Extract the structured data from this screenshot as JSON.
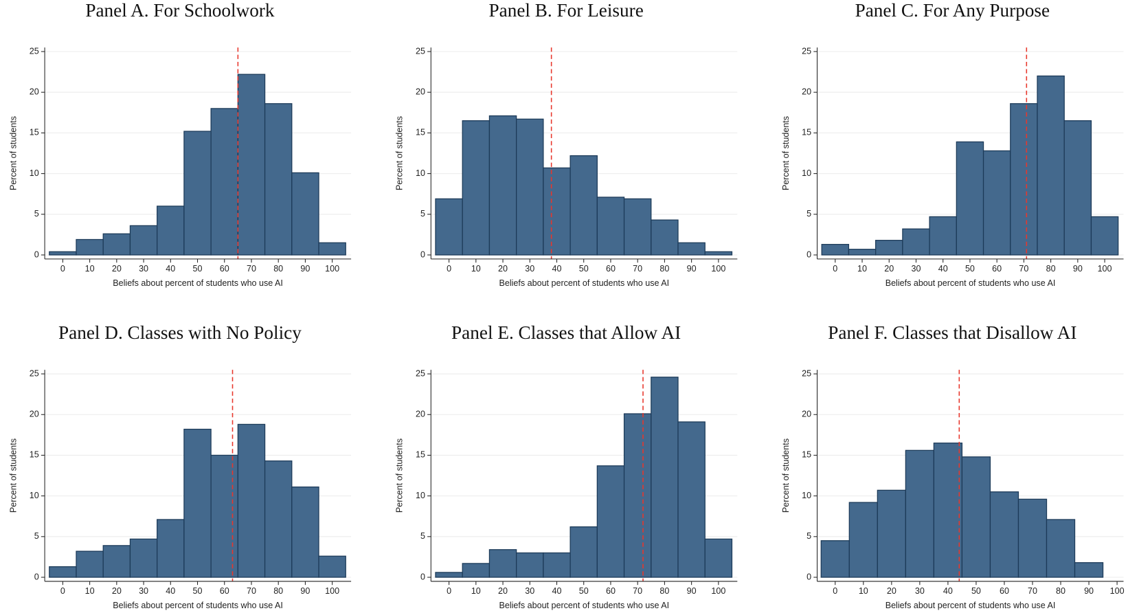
{
  "chart_data": [
    {
      "type": "histogram",
      "title": "Panel A. For Schoolwork",
      "x_label": "Beliefs about percent of students who use AI",
      "y_label": "Percent of students",
      "bins": [
        -5,
        5,
        15,
        25,
        35,
        45,
        55,
        65,
        75,
        85,
        95,
        105
      ],
      "values": [
        0.4,
        1.9,
        2.6,
        3.6,
        6.0,
        15.2,
        18.0,
        22.2,
        18.6,
        10.1,
        1.5
      ],
      "vline": 65,
      "xlim": [
        -6.7,
        107
      ],
      "ylim": [
        -0.5,
        25.5
      ],
      "xticks": [
        0,
        10,
        20,
        30,
        40,
        50,
        60,
        70,
        80,
        90,
        100
      ],
      "yticks": [
        0,
        5,
        10,
        15,
        20,
        25
      ],
      "grid": true,
      "color": "#44698d",
      "vline_color": "#e8372c"
    },
    {
      "type": "histogram",
      "title": "Panel B. For Leisure",
      "x_label": "Beliefs about percent of students who use AI",
      "y_label": "Percent of students",
      "bins": [
        -5,
        5,
        15,
        25,
        35,
        45,
        55,
        65,
        75,
        85,
        95,
        105
      ],
      "values": [
        6.9,
        16.5,
        17.1,
        16.7,
        10.7,
        12.2,
        7.1,
        6.9,
        4.3,
        1.5,
        0.4
      ],
      "vline": 38,
      "xlim": [
        -6.7,
        107
      ],
      "ylim": [
        -0.5,
        25.5
      ],
      "xticks": [
        0,
        10,
        20,
        30,
        40,
        50,
        60,
        70,
        80,
        90,
        100
      ],
      "yticks": [
        0,
        5,
        10,
        15,
        20,
        25
      ],
      "grid": true,
      "color": "#44698d",
      "vline_color": "#e8372c"
    },
    {
      "type": "histogram",
      "title": "Panel C. For Any Purpose",
      "x_label": "Beliefs about percent of students who use AI",
      "y_label": "Percent of students",
      "bins": [
        -5,
        5,
        15,
        25,
        35,
        45,
        55,
        65,
        75,
        85,
        95,
        105
      ],
      "values": [
        1.3,
        0.7,
        1.8,
        3.2,
        4.7,
        13.9,
        12.8,
        18.6,
        22.0,
        16.5,
        4.7
      ],
      "vline": 71,
      "xlim": [
        -6.7,
        107
      ],
      "ylim": [
        -0.5,
        25.5
      ],
      "xticks": [
        0,
        10,
        20,
        30,
        40,
        50,
        60,
        70,
        80,
        90,
        100
      ],
      "yticks": [
        0,
        5,
        10,
        15,
        20,
        25
      ],
      "grid": true,
      "color": "#44698d",
      "vline_color": "#e8372c"
    },
    {
      "type": "histogram",
      "title": "Panel D. Classes with No Policy",
      "x_label": "Beliefs about percent of students who use AI",
      "y_label": "Percent of students",
      "bins": [
        -5,
        5,
        15,
        25,
        35,
        45,
        55,
        65,
        75,
        85,
        95,
        105
      ],
      "values": [
        1.3,
        3.2,
        3.9,
        4.7,
        7.1,
        18.2,
        15.0,
        18.8,
        14.3,
        11.1,
        2.6
      ],
      "vline": 63,
      "xlim": [
        -6.7,
        107
      ],
      "ylim": [
        -0.5,
        25.5
      ],
      "xticks": [
        0,
        10,
        20,
        30,
        40,
        50,
        60,
        70,
        80,
        90,
        100
      ],
      "yticks": [
        0,
        5,
        10,
        15,
        20,
        25
      ],
      "grid": true,
      "color": "#44698d",
      "vline_color": "#e8372c"
    },
    {
      "type": "histogram",
      "title": "Panel E. Classes that Allow AI",
      "x_label": "Beliefs about percent of students who use AI",
      "y_label": "Percent of students",
      "bins": [
        -5,
        5,
        15,
        25,
        35,
        45,
        55,
        65,
        75,
        85,
        95,
        105
      ],
      "values": [
        0.6,
        1.7,
        3.4,
        3.0,
        3.0,
        6.2,
        13.7,
        20.1,
        24.6,
        19.1,
        4.7
      ],
      "vline": 72,
      "xlim": [
        -6.7,
        107
      ],
      "ylim": [
        -0.5,
        25.5
      ],
      "xticks": [
        0,
        10,
        20,
        30,
        40,
        50,
        60,
        70,
        80,
        90,
        100
      ],
      "yticks": [
        0,
        5,
        10,
        15,
        20,
        25
      ],
      "grid": true,
      "color": "#44698d",
      "vline_color": "#e8372c"
    },
    {
      "type": "histogram",
      "title": "Panel F. Classes that Disallow AI",
      "x_label": "Beliefs about percent of students who use AI",
      "y_label": "Percent of students",
      "bins": [
        -5,
        5,
        15,
        25,
        35,
        45,
        55,
        65,
        75,
        85,
        95
      ],
      "values": [
        4.5,
        9.2,
        10.7,
        15.6,
        16.5,
        14.8,
        10.5,
        9.6,
        7.1,
        1.8
      ],
      "vline": 44,
      "xlim": [
        -6.4,
        102.3
      ],
      "ylim": [
        -0.5,
        25.5
      ],
      "xticks": [
        0,
        10,
        20,
        30,
        40,
        50,
        60,
        70,
        80,
        90,
        100
      ],
      "yticks": [
        0,
        5,
        10,
        15,
        20,
        25
      ],
      "grid": true,
      "color": "#44698d",
      "vline_color": "#e8372c"
    }
  ]
}
